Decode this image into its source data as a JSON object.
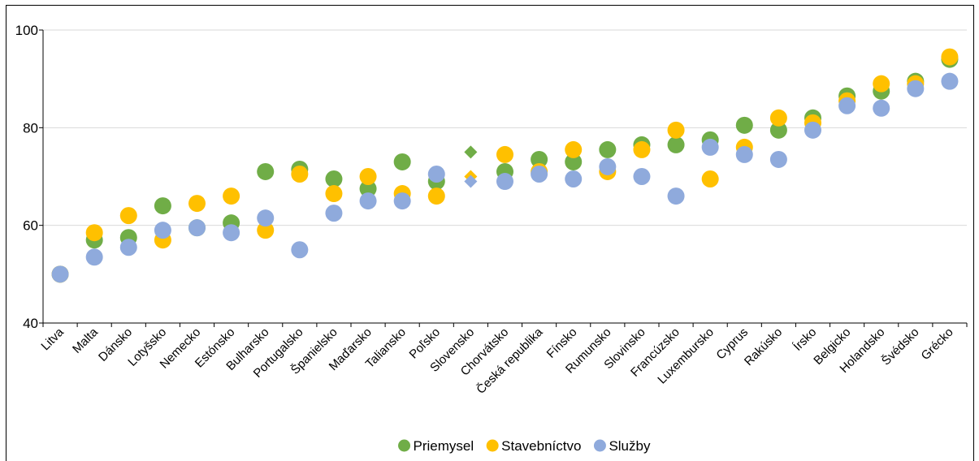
{
  "chart_data": {
    "type": "scatter",
    "title": "",
    "xlabel": "",
    "ylabel": "",
    "ylim": [
      40,
      100
    ],
    "yticks": [
      40,
      60,
      80,
      100
    ],
    "grid": true,
    "legend_position": "bottom",
    "categories": [
      "Litva",
      "Malta",
      "Dánsko",
      "Lotyšsko",
      "Nemecko",
      "Estónsko",
      "Bulharsko",
      "Portugalsko",
      "Španielsko",
      "Maďarsko",
      "Taliansko",
      "Poľsko",
      "Slovensko",
      "Chorvátsko",
      "Česká republika",
      "Fínsko",
      "Rumunsko",
      "Slovinsko",
      "Francúzsko",
      "Luxembursko",
      "Cyprus",
      "Rakúsko",
      "Írsko",
      "Belgicko",
      "Holandsko",
      "Švédsko",
      "Grécko"
    ],
    "highlight_category": "Slovensko",
    "series": [
      {
        "name": "Priemysel",
        "color": "#70AD47",
        "values": [
          50,
          57,
          57.5,
          64,
          59.5,
          60.5,
          71,
          71.5,
          69.5,
          67.5,
          73,
          69,
          75,
          71,
          73.5,
          73,
          75.5,
          76.5,
          76.5,
          77.5,
          80.5,
          79.5,
          82,
          86.5,
          87.5,
          89.5,
          94
        ]
      },
      {
        "name": "Stavebníctvo",
        "color": "#FFC000",
        "values": [
          50,
          58.5,
          62,
          57,
          64.5,
          66,
          59,
          70.5,
          66.5,
          70,
          66.5,
          66,
          70,
          74.5,
          71,
          75.5,
          71,
          75.5,
          79.5,
          69.5,
          76,
          82,
          81,
          85.5,
          89,
          89,
          94.5
        ]
      },
      {
        "name": "Služby",
        "color": "#8FAADC",
        "values": [
          50,
          53.5,
          55.5,
          59,
          59.5,
          58.5,
          61.5,
          55,
          62.5,
          65,
          65,
          70.5,
          69,
          69,
          70.5,
          69.5,
          72,
          70,
          66,
          76,
          74.5,
          73.5,
          79.5,
          84.5,
          84,
          88,
          89.5
        ]
      }
    ]
  }
}
